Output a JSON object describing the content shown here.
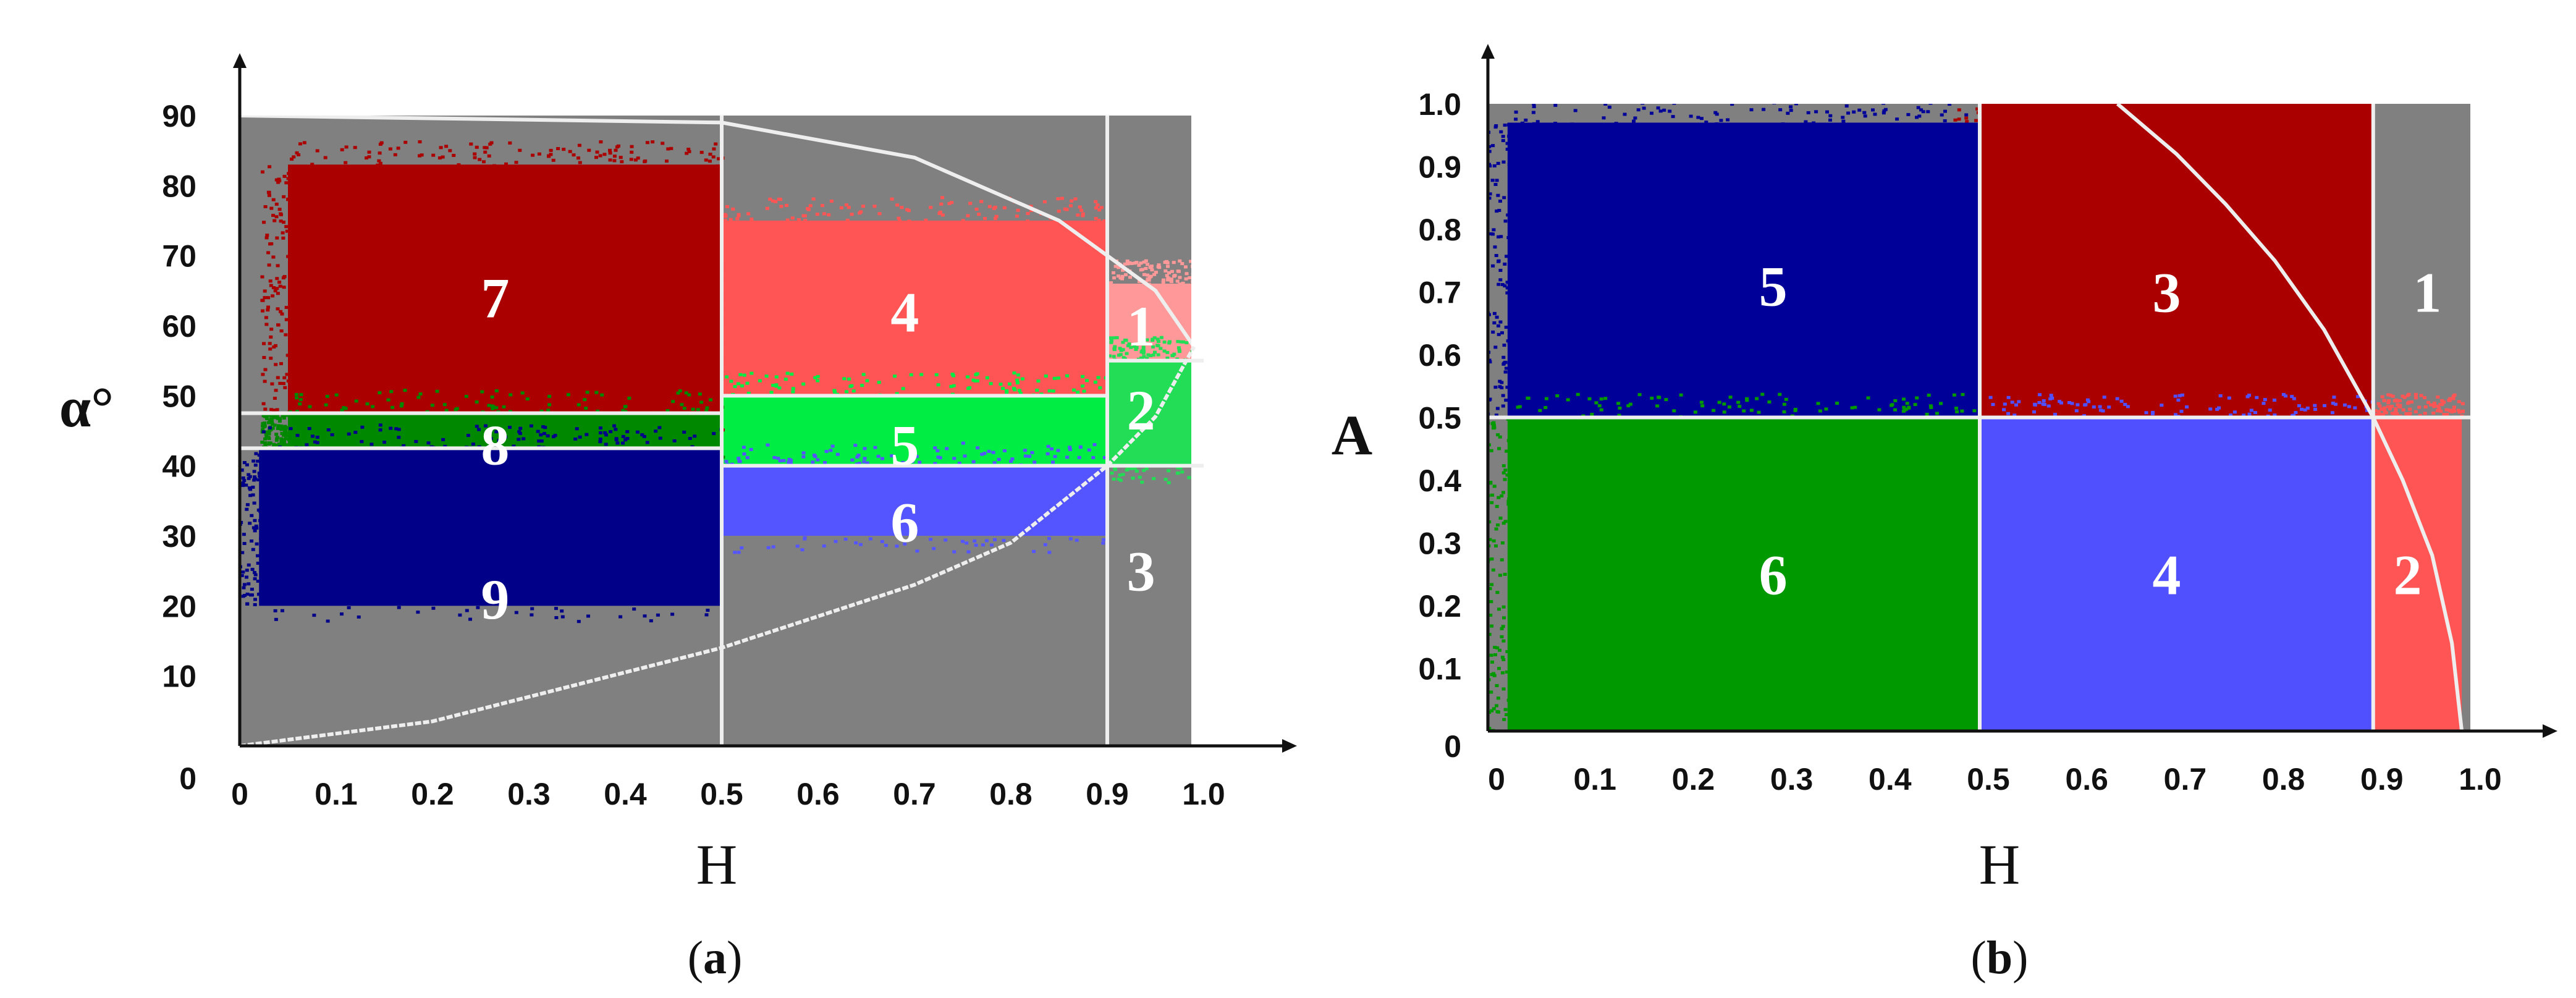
{
  "chart_data": [
    {
      "panel_label": "a",
      "type": "scatter",
      "title": "",
      "xlabel": "H",
      "ylabel": "α°",
      "xlim": [
        0,
        1.0
      ],
      "ylim": [
        0,
        90
      ],
      "xticks": [
        "0",
        "0.1",
        "0.2",
        "0.3",
        "0.4",
        "0.5",
        "0.6",
        "0.7",
        "0.8",
        "0.9",
        "1.0"
      ],
      "yticks": [
        "0",
        "10",
        "20",
        "30",
        "40",
        "50",
        "60",
        "70",
        "80",
        "90"
      ],
      "background_color": "#808080",
      "boundaries": {
        "vertical_H": [
          0.5,
          0.9
        ],
        "horizontal_alpha": [
          {
            "h_from": 0.0,
            "h_to": 0.5,
            "alpha": [
              47.5,
              42.5
            ]
          },
          {
            "h_from": 0.5,
            "h_to": 0.9,
            "alpha": [
              50.0,
              40.0
            ]
          },
          {
            "h_from": 0.9,
            "h_to": 1.0,
            "alpha": [
              55.0,
              40.0
            ]
          }
        ],
        "feasible_curve": {
          "upper": [
            [
              0.0,
              90
            ],
            [
              0.5,
              89
            ],
            [
              0.7,
              84
            ],
            [
              0.85,
              75
            ],
            [
              0.95,
              65
            ],
            [
              0.99,
              57
            ]
          ],
          "lower": [
            [
              0.0,
              0
            ],
            [
              0.2,
              3.5
            ],
            [
              0.5,
              14
            ],
            [
              0.7,
              23
            ],
            [
              0.8,
              29
            ],
            [
              0.9,
              40
            ],
            [
              0.95,
              47
            ],
            [
              0.99,
              57
            ]
          ]
        }
      },
      "zones": [
        {
          "label": "1",
          "h": [
            0.9,
            1.0
          ],
          "alpha": [
            55,
            66
          ],
          "color": "#ff9999",
          "label_at": [
            0.935,
            60
          ]
        },
        {
          "label": "2",
          "h": [
            0.9,
            1.0
          ],
          "alpha": [
            40,
            55
          ],
          "color": "#22dd55",
          "label_at": [
            0.935,
            48
          ]
        },
        {
          "label": "3",
          "h": [
            0.9,
            1.0
          ],
          "alpha": [
            0,
            40
          ],
          "color": "#808080",
          "label_at": [
            0.935,
            25
          ]
        },
        {
          "label": "4",
          "h": [
            0.5,
            0.9
          ],
          "alpha": [
            50,
            75
          ],
          "color": "#ff5555",
          "label_at": [
            0.69,
            62
          ]
        },
        {
          "label": "5",
          "h": [
            0.5,
            0.9
          ],
          "alpha": [
            40,
            50
          ],
          "color": "#00ee44",
          "label_at": [
            0.69,
            43
          ]
        },
        {
          "label": "6",
          "h": [
            0.5,
            0.9
          ],
          "alpha": [
            30,
            40
          ],
          "color": "#5555ff",
          "label_at": [
            0.69,
            32
          ]
        },
        {
          "label": "7",
          "h": [
            0.05,
            0.5
          ],
          "alpha": [
            47.5,
            83
          ],
          "color": "#aa0000",
          "label_at": [
            0.265,
            64
          ]
        },
        {
          "label": "8",
          "h": [
            0.05,
            0.5
          ],
          "alpha": [
            42.5,
            47.5
          ],
          "color": "#008800",
          "label_at": [
            0.265,
            43
          ]
        },
        {
          "label": "9",
          "h": [
            0.02,
            0.5
          ],
          "alpha": [
            20,
            42.5
          ],
          "color": "#000088",
          "label_at": [
            0.265,
            21
          ]
        }
      ]
    },
    {
      "panel_label": "b",
      "type": "scatter",
      "title": "",
      "xlabel": "H",
      "ylabel": "A",
      "xlim": [
        0,
        1.0
      ],
      "ylim": [
        0,
        1.0
      ],
      "xticks": [
        "0",
        "0.1",
        "0.2",
        "0.3",
        "0.4",
        "0.5",
        "0.6",
        "0.7",
        "0.8",
        "0.9",
        "1.0"
      ],
      "yticks": [
        "0",
        "0.1",
        "0.2",
        "0.3",
        "0.4",
        "0.5",
        "0.6",
        "0.7",
        "0.8",
        "0.9",
        "1.0"
      ],
      "background_color": "#808080",
      "boundaries": {
        "vertical_H": [
          0.5,
          0.9
        ],
        "horizontal_A": [
          0.5
        ],
        "feasible_curve": [
          [
            0.64,
            1.0
          ],
          [
            0.7,
            0.92
          ],
          [
            0.75,
            0.84
          ],
          [
            0.8,
            0.75
          ],
          [
            0.85,
            0.64
          ],
          [
            0.9,
            0.5
          ],
          [
            0.93,
            0.4
          ],
          [
            0.96,
            0.28
          ],
          [
            0.98,
            0.14
          ],
          [
            0.99,
            0.0
          ]
        ]
      },
      "zones": [
        {
          "label": "1",
          "h": [
            0.9,
            1.0
          ],
          "a": [
            0.5,
            1.0
          ],
          "color": "#808080",
          "label_at": [
            0.955,
            0.7
          ]
        },
        {
          "label": "2",
          "h": [
            0.9,
            0.99
          ],
          "a": [
            0.0,
            0.5
          ],
          "color": "#ff5555",
          "label_at": [
            0.935,
            0.25
          ]
        },
        {
          "label": "3",
          "h": [
            0.5,
            0.9
          ],
          "a": [
            0.5,
            1.0
          ],
          "color": "#aa0000",
          "label_at": [
            0.69,
            0.7
          ]
        },
        {
          "label": "4",
          "h": [
            0.5,
            0.9
          ],
          "a": [
            0.0,
            0.5
          ],
          "color": "#5050ff",
          "label_at": [
            0.69,
            0.25
          ]
        },
        {
          "label": "5",
          "h": [
            0.02,
            0.5
          ],
          "a": [
            0.5,
            0.97
          ],
          "color": "#000099",
          "label_at": [
            0.29,
            0.71
          ]
        },
        {
          "label": "6",
          "h": [
            0.02,
            0.5
          ],
          "a": [
            0.0,
            0.5
          ],
          "color": "#009900",
          "label_at": [
            0.29,
            0.25
          ]
        }
      ]
    }
  ]
}
